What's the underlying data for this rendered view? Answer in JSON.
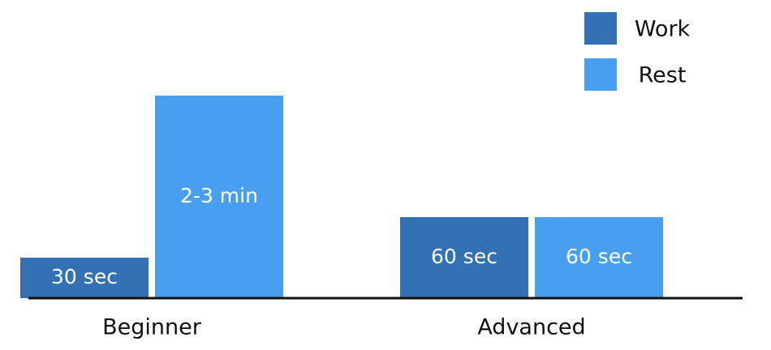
{
  "chart_data": {
    "type": "bar",
    "categories": [
      "Beginner",
      "Advanced"
    ],
    "series": [
      {
        "name": "Work",
        "color": "#3371b4",
        "values": [
          30,
          60
        ],
        "value_labels": [
          "30 sec",
          "60 sec"
        ]
      },
      {
        "name": "Rest",
        "color": "#489ff0",
        "values": [
          150,
          60
        ],
        "value_labels": [
          "2-3 min",
          "60 sec"
        ]
      }
    ],
    "legend": "top-right"
  }
}
